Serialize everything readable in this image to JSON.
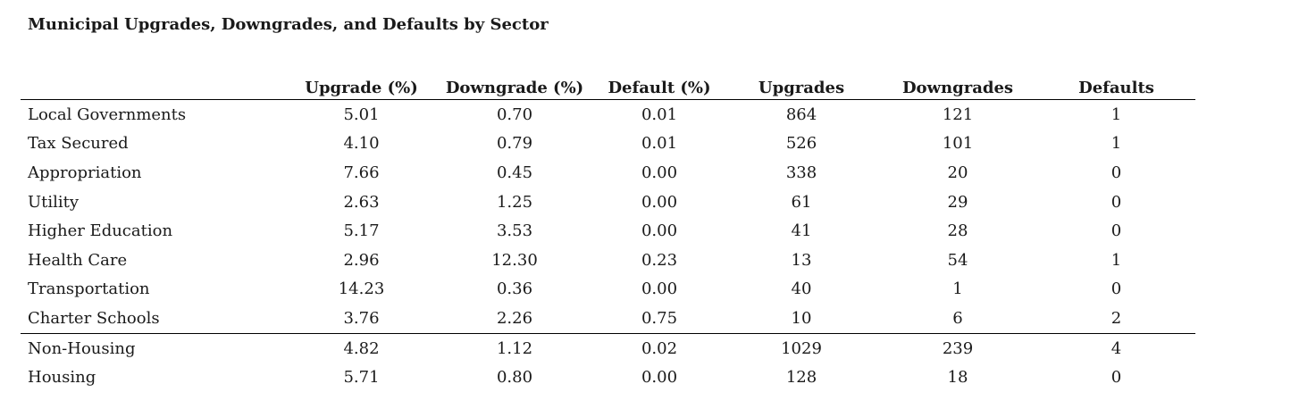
{
  "title": "Municipal Upgrades, Downgrades, and Defaults by Sector",
  "columns": [
    "",
    "Upgrade (%)",
    "Downgrade (%)",
    "Default (%)",
    "Upgrades",
    "Downgrades",
    "Defaults"
  ],
  "rows": [
    {
      "sector": "Local Governments",
      "upgrade_pct": "5.01",
      "downgrade_pct": "0.70",
      "default_pct": "0.01",
      "upgrades": "864",
      "downgrades": "121",
      "defaults": "1"
    },
    {
      "sector": "Tax Secured",
      "upgrade_pct": "4.10",
      "downgrade_pct": "0.79",
      "default_pct": "0.01",
      "upgrades": "526",
      "downgrades": "101",
      "defaults": "1"
    },
    {
      "sector": "Appropriation",
      "upgrade_pct": "7.66",
      "downgrade_pct": "0.45",
      "default_pct": "0.00",
      "upgrades": "338",
      "downgrades": "20",
      "defaults": "0"
    },
    {
      "sector": "Utility",
      "upgrade_pct": "2.63",
      "downgrade_pct": "1.25",
      "default_pct": "0.00",
      "upgrades": "61",
      "downgrades": "29",
      "defaults": "0"
    },
    {
      "sector": "Higher Education",
      "upgrade_pct": "5.17",
      "downgrade_pct": "3.53",
      "default_pct": "0.00",
      "upgrades": "41",
      "downgrades": "28",
      "defaults": "0"
    },
    {
      "sector": "Health Care",
      "upgrade_pct": "2.96",
      "downgrade_pct": "12.30",
      "default_pct": "0.23",
      "upgrades": "13",
      "downgrades": "54",
      "defaults": "1"
    },
    {
      "sector": "Transportation",
      "upgrade_pct": "14.23",
      "downgrade_pct": "0.36",
      "default_pct": "0.00",
      "upgrades": "40",
      "downgrades": "1",
      "defaults": "0"
    },
    {
      "sector": "Charter Schools",
      "upgrade_pct": "3.76",
      "downgrade_pct": "2.26",
      "default_pct": "0.75",
      "upgrades": "10",
      "downgrades": "6",
      "defaults": "2"
    }
  ],
  "summary_rows": [
    {
      "sector": "Non-Housing",
      "upgrade_pct": "4.82",
      "downgrade_pct": "1.12",
      "default_pct": "0.02",
      "upgrades": "1029",
      "downgrades": "239",
      "defaults": "4"
    },
    {
      "sector": "Housing",
      "upgrade_pct": "5.71",
      "downgrade_pct": "0.80",
      "default_pct": "0.00",
      "upgrades": "128",
      "downgrades": "18",
      "defaults": "0"
    }
  ],
  "chart_data": {
    "type": "table",
    "title": "Municipal Upgrades, Downgrades, and Defaults by Sector",
    "columns": [
      "",
      "Upgrade (%)",
      "Downgrade (%)",
      "Default (%)",
      "Upgrades",
      "Downgrades",
      "Defaults"
    ],
    "rows": [
      [
        "Local Governments",
        5.01,
        0.7,
        0.01,
        864,
        121,
        1
      ],
      [
        "Tax Secured",
        4.1,
        0.79,
        0.01,
        526,
        101,
        1
      ],
      [
        "Appropriation",
        7.66,
        0.45,
        0.0,
        338,
        20,
        0
      ],
      [
        "Utility",
        2.63,
        1.25,
        0.0,
        61,
        29,
        0
      ],
      [
        "Higher Education",
        5.17,
        3.53,
        0.0,
        41,
        28,
        0
      ],
      [
        "Health Care",
        2.96,
        12.3,
        0.23,
        13,
        54,
        1
      ],
      [
        "Transportation",
        14.23,
        0.36,
        0.0,
        40,
        1,
        0
      ],
      [
        "Charter Schools",
        3.76,
        2.26,
        0.75,
        10,
        6,
        2
      ],
      [
        "Non-Housing",
        4.82,
        1.12,
        0.02,
        1029,
        239,
        4
      ],
      [
        "Housing",
        5.71,
        0.8,
        0.0,
        128,
        18,
        0
      ]
    ]
  }
}
